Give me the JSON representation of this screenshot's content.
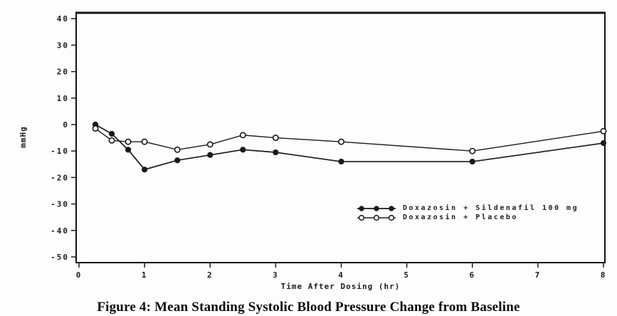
{
  "figure": {
    "caption": "Figure 4: Mean Standing Systolic Blood Pressure Change from Baseline"
  },
  "chart_data": {
    "type": "line",
    "title": "",
    "xlabel": "Time After Dosing (hr)",
    "ylabel": "mmHg",
    "xlim": [
      0,
      8
    ],
    "ylim": [
      -50,
      40
    ],
    "x_ticks": [
      0,
      1,
      2,
      3,
      4,
      5,
      6,
      7,
      8
    ],
    "y_ticks": [
      40,
      30,
      20,
      10,
      0,
      -10,
      -20,
      -30,
      -40,
      -50
    ],
    "grid": false,
    "legend_position": "inside-lower-right",
    "x": [
      0.25,
      0.5,
      0.75,
      1,
      1.5,
      2,
      2.5,
      3,
      4,
      6,
      8
    ],
    "series": [
      {
        "name": "Doxazosin + Sildenafil 100 mg",
        "marker": "filled-circle",
        "color": "#1a1a1a",
        "values": [
          0,
          -3.5,
          -9.5,
          -17,
          -13.5,
          -11.5,
          -9.5,
          -10.5,
          -14,
          -14,
          -7
        ]
      },
      {
        "name": "Doxazosin + Placebo",
        "marker": "open-circle",
        "color": "#1a1a1a",
        "values": [
          -1.5,
          -6,
          -6.5,
          -6.5,
          -9.5,
          -7.5,
          -4,
          -5,
          -6.5,
          -10,
          -2.5
        ]
      }
    ]
  }
}
